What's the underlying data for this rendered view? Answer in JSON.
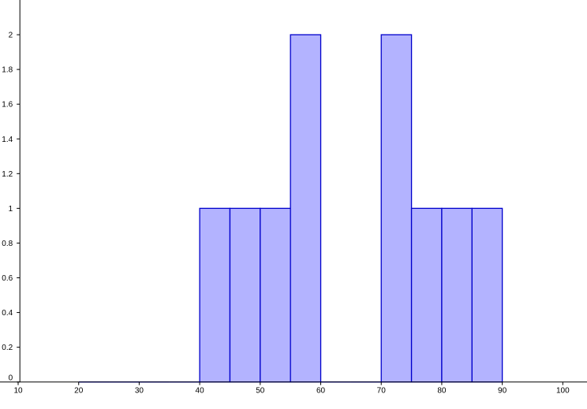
{
  "chart_data": {
    "type": "bar",
    "title": "",
    "xlabel": "",
    "ylabel": "",
    "xlim": [
      7,
      104
    ],
    "ylim": [
      -0.03,
      2.2
    ],
    "x_ticks": [
      10,
      20,
      30,
      40,
      50,
      60,
      70,
      80,
      90,
      100
    ],
    "x_tick_labels": [
      "10",
      "20",
      "30",
      "40",
      "50",
      "60",
      "70",
      "80",
      "90",
      "100"
    ],
    "y_ticks": [
      0,
      0.2,
      0.4,
      0.6,
      0.8,
      1,
      1.2,
      1.4,
      1.6,
      1.8,
      2
    ],
    "y_tick_labels": [
      "0",
      "0.2",
      "0.4",
      "0.6",
      "0.8",
      "1",
      "1.2",
      "1.4",
      "1.6",
      "1.8",
      "2"
    ],
    "bin_width": 5,
    "bins": [
      {
        "start": 20,
        "end": 25,
        "value": 0
      },
      {
        "start": 25,
        "end": 30,
        "value": 0
      },
      {
        "start": 30,
        "end": 35,
        "value": 0
      },
      {
        "start": 35,
        "end": 40,
        "value": 0
      },
      {
        "start": 40,
        "end": 45,
        "value": 1
      },
      {
        "start": 45,
        "end": 50,
        "value": 1
      },
      {
        "start": 50,
        "end": 55,
        "value": 1
      },
      {
        "start": 55,
        "end": 60,
        "value": 2
      },
      {
        "start": 60,
        "end": 65,
        "value": 0
      },
      {
        "start": 65,
        "end": 70,
        "value": 0
      },
      {
        "start": 70,
        "end": 75,
        "value": 2
      },
      {
        "start": 75,
        "end": 80,
        "value": 1
      },
      {
        "start": 80,
        "end": 85,
        "value": 1
      },
      {
        "start": 85,
        "end": 90,
        "value": 1
      }
    ],
    "grid": false,
    "bar_fill": "#b3b3ff",
    "bar_stroke": "#0000cc",
    "axis_color": "#000000"
  }
}
